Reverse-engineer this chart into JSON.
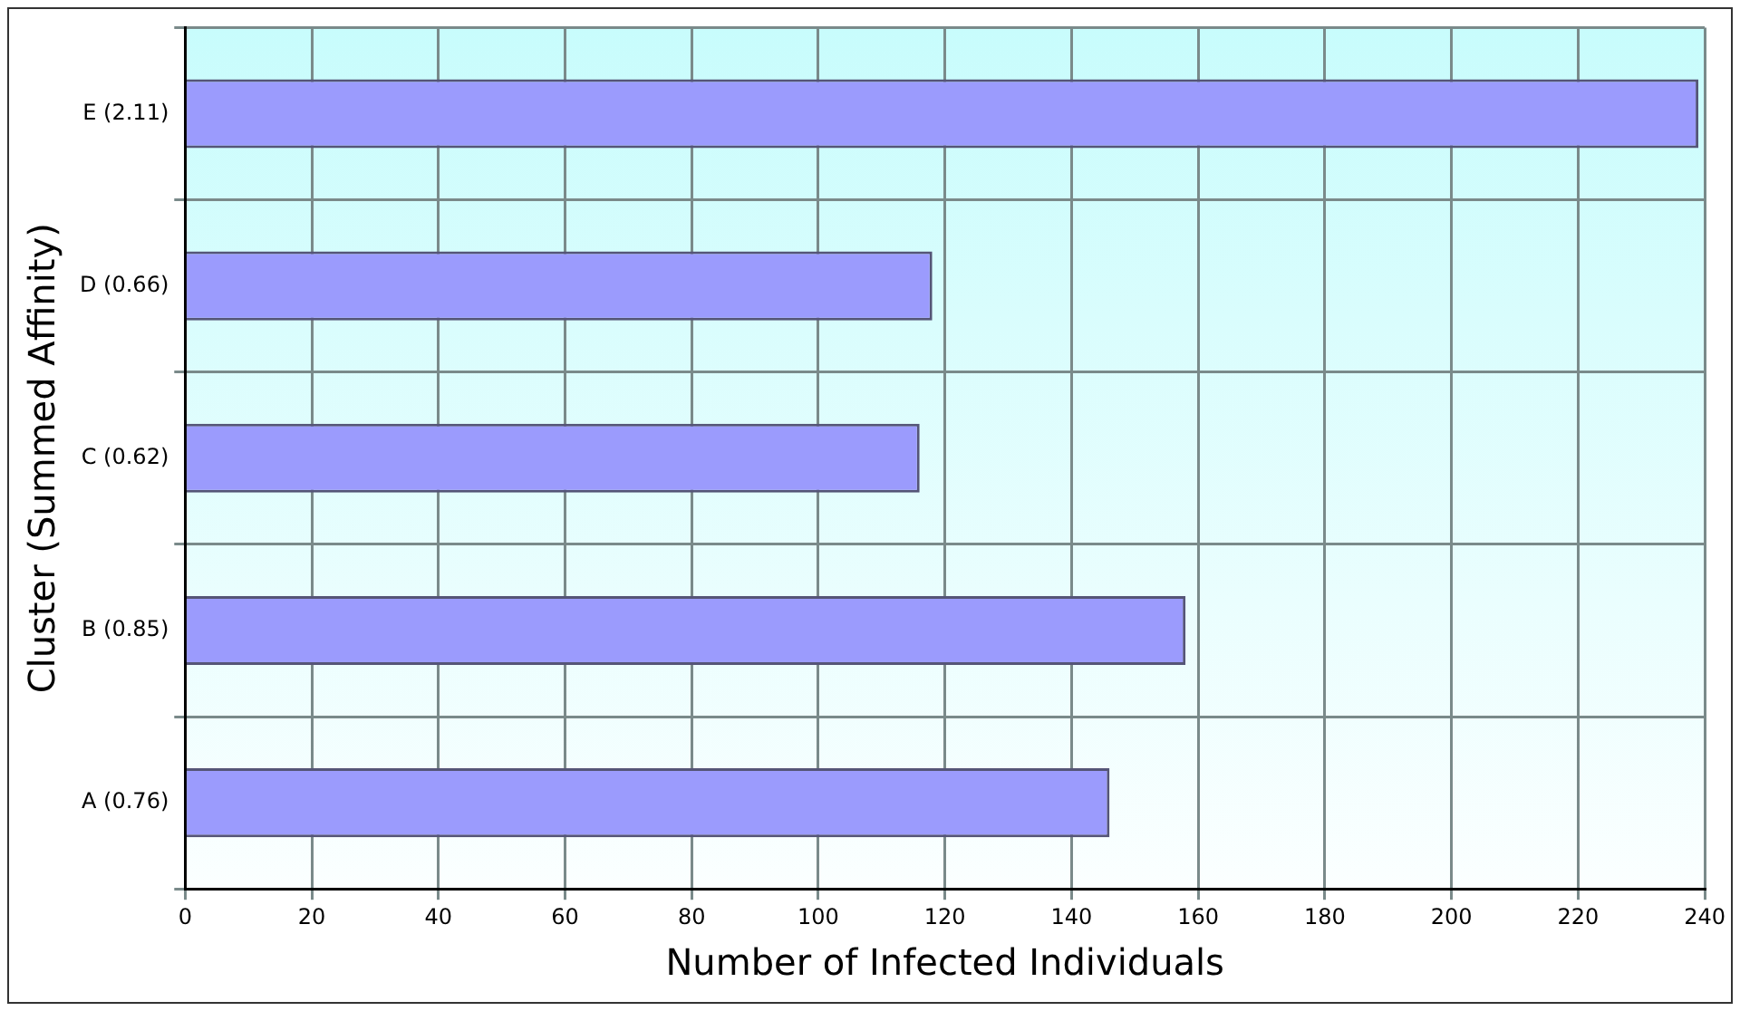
{
  "chart_data": {
    "type": "bar",
    "orientation": "horizontal",
    "xlabel": "Number of Infected Individuals",
    "ylabel": "Cluster (Summed Affinity)",
    "categories": [
      "E (2.11)",
      "D (0.66)",
      "C (0.62)",
      "B (0.85)",
      "A (0.76)"
    ],
    "values": [
      239,
      118,
      116,
      158,
      146
    ],
    "color": "#9b9bfd",
    "xlim": [
      0,
      240
    ],
    "xticks": [
      0,
      20,
      40,
      60,
      80,
      100,
      120,
      140,
      160,
      180,
      200,
      220,
      240
    ],
    "grid": true,
    "legend": false
  }
}
